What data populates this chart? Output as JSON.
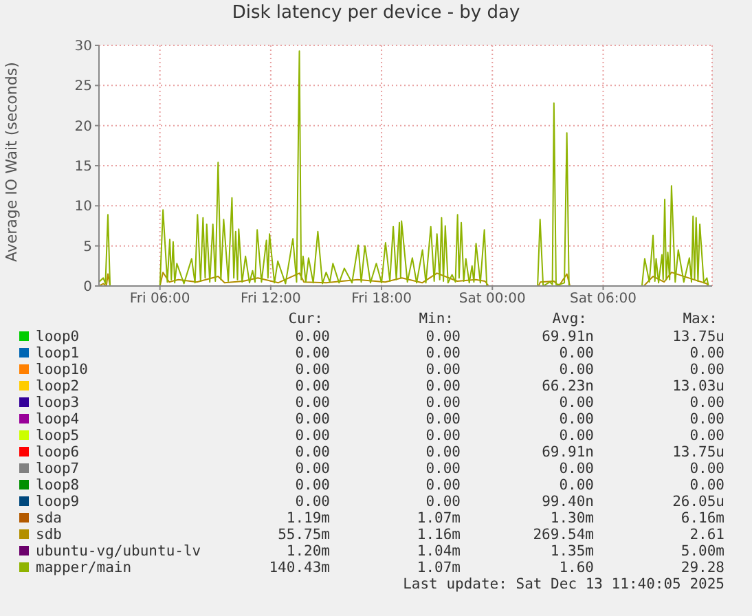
{
  "chart_data": {
    "type": "line",
    "title": "Disk latency per device - by day",
    "ylabel": "Average IO Wait (seconds)",
    "xlim": [
      "2025-12-12T02:42",
      "2025-12-13T11:54"
    ],
    "xticks": [
      {
        "value": "2025-12-12T06:00",
        "label": "Fri 06:00"
      },
      {
        "value": "2025-12-12T12:00",
        "label": "Fri 12:00"
      },
      {
        "value": "2025-12-12T18:00",
        "label": "Fri 18:00"
      },
      {
        "value": "2025-12-13T00:00",
        "label": "Sat 00:00"
      },
      {
        "value": "2025-12-13T06:00",
        "label": "Sat 06:00"
      }
    ],
    "ylim": [
      0,
      30
    ],
    "yticks": [
      0,
      5,
      10,
      15,
      20,
      25,
      30
    ],
    "grid": true,
    "legend": "bottom",
    "marker": "none",
    "line_style": "solid",
    "series": [
      {
        "name": "loop0",
        "color": "#00cc00"
      },
      {
        "name": "loop1",
        "color": "#0066b3"
      },
      {
        "name": "loop10",
        "color": "#ff8000"
      },
      {
        "name": "loop2",
        "color": "#ffcc00"
      },
      {
        "name": "loop3",
        "color": "#330099"
      },
      {
        "name": "loop4",
        "color": "#990099"
      },
      {
        "name": "loop5",
        "color": "#ccff00"
      },
      {
        "name": "loop6",
        "color": "#ff0000"
      },
      {
        "name": "loop7",
        "color": "#808080"
      },
      {
        "name": "loop8",
        "color": "#008f00"
      },
      {
        "name": "loop9",
        "color": "#00487d"
      },
      {
        "name": "sda",
        "color": "#b35a00"
      },
      {
        "name": "sdb",
        "color": "#b38f00",
        "x": [
          "2025-12-12T02:42",
          "2025-12-12T02:56",
          "2025-12-12T03:06",
          "2025-12-12T03:11",
          "2025-12-12T03:18",
          "2025-12-12T06:00",
          "2025-12-12T06:10",
          "2025-12-12T06:30",
          "2025-12-12T07:00",
          "2025-12-12T08:00",
          "2025-12-12T09:09",
          "2025-12-12T09:30",
          "2025-12-12T10:30",
          "2025-12-12T11:18",
          "2025-12-12T12:24",
          "2025-12-12T13:33",
          "2025-12-12T13:48",
          "2025-12-12T15:00",
          "2025-12-12T16:42",
          "2025-12-12T18:12",
          "2025-12-12T19:06",
          "2025-12-12T20:12",
          "2025-12-12T21:00",
          "2025-12-12T22:06",
          "2025-12-12T23:06",
          "2025-12-12T23:36",
          "2025-12-12T23:48",
          "2025-12-13T02:30",
          "2025-12-13T02:36",
          "2025-12-13T03:20",
          "2025-12-13T03:36",
          "2025-12-13T04:02",
          "2025-12-13T04:12",
          "2025-12-13T08:12",
          "2025-12-13T08:42",
          "2025-12-13T09:18",
          "2025-12-13T09:42",
          "2025-12-13T10:54",
          "2025-12-13T11:36",
          "2025-12-13T11:42"
        ],
        "values": [
          0,
          0.3,
          0,
          1.5,
          0,
          0,
          1.7,
          0.5,
          0.8,
          0.5,
          1.2,
          0.4,
          0.6,
          1.0,
          0.4,
          1.6,
          0.5,
          0.4,
          0.8,
          0.5,
          1.0,
          0.4,
          1.6,
          0.6,
          0.8,
          0.6,
          0,
          0,
          0.5,
          0.6,
          0,
          1.5,
          0,
          0,
          1.2,
          0.5,
          1.7,
          0.8,
          0.3,
          0
        ]
      },
      {
        "name": "ubuntu-vg/ubuntu-lv",
        "color": "#6b006b"
      },
      {
        "name": "mapper/main",
        "color": "#8fb300",
        "x": [
          "2025-12-12T02:42",
          "2025-12-12T02:56",
          "2025-12-12T03:03",
          "2025-12-12T03:11",
          "2025-12-12T03:18",
          "2025-12-12T06:00",
          "2025-12-12T06:10",
          "2025-12-12T06:24",
          "2025-12-12T06:32",
          "2025-12-12T06:37",
          "2025-12-12T06:43",
          "2025-12-12T06:48",
          "2025-12-12T06:55",
          "2025-12-12T07:18",
          "2025-12-12T07:43",
          "2025-12-12T07:54",
          "2025-12-12T08:02",
          "2025-12-12T08:12",
          "2025-12-12T08:20",
          "2025-12-12T08:27",
          "2025-12-12T08:32",
          "2025-12-12T08:42",
          "2025-12-12T08:52",
          "2025-12-12T09:00",
          "2025-12-12T09:09",
          "2025-12-12T09:18",
          "2025-12-12T09:27",
          "2025-12-12T09:42",
          "2025-12-12T09:54",
          "2025-12-12T10:00",
          "2025-12-12T10:06",
          "2025-12-12T10:12",
          "2025-12-12T10:16",
          "2025-12-12T10:27",
          "2025-12-12T10:38",
          "2025-12-12T10:51",
          "2025-12-12T11:01",
          "2025-12-12T11:09",
          "2025-12-12T11:16",
          "2025-12-12T11:30",
          "2025-12-12T11:46",
          "2025-12-12T11:51",
          "2025-12-12T11:56",
          "2025-12-12T12:12",
          "2025-12-12T12:23",
          "2025-12-12T12:48",
          "2025-12-12T13:12",
          "2025-12-12T13:24",
          "2025-12-12T13:33",
          "2025-12-12T13:39",
          "2025-12-12T13:45",
          "2025-12-12T13:54",
          "2025-12-12T14:03",
          "2025-12-12T14:18",
          "2025-12-12T14:33",
          "2025-12-12T14:48",
          "2025-12-12T15:00",
          "2025-12-12T15:12",
          "2025-12-12T15:22",
          "2025-12-12T15:42",
          "2025-12-12T15:59",
          "2025-12-12T16:24",
          "2025-12-12T16:44",
          "2025-12-12T16:54",
          "2025-12-12T17:06",
          "2025-12-12T17:24",
          "2025-12-12T17:43",
          "2025-12-12T18:00",
          "2025-12-12T18:13",
          "2025-12-12T18:27",
          "2025-12-12T18:38",
          "2025-12-12T18:48",
          "2025-12-12T18:58",
          "2025-12-12T19:02",
          "2025-12-12T19:05",
          "2025-12-12T19:24",
          "2025-12-12T19:40",
          "2025-12-12T19:54",
          "2025-12-12T20:13",
          "2025-12-12T20:24",
          "2025-12-12T20:40",
          "2025-12-12T20:51",
          "2025-12-12T21:00",
          "2025-12-12T21:09",
          "2025-12-12T21:15",
          "2025-12-12T21:21",
          "2025-12-12T21:27",
          "2025-12-12T21:36",
          "2025-12-12T21:49",
          "2025-12-12T22:00",
          "2025-12-12T22:07",
          "2025-12-12T22:12",
          "2025-12-12T22:19",
          "2025-12-12T22:27",
          "2025-12-12T22:34",
          "2025-12-12T22:45",
          "2025-12-12T22:54",
          "2025-12-12T23:00",
          "2025-12-12T23:07",
          "2025-12-12T23:21",
          "2025-12-12T23:34",
          "2025-12-12T23:42",
          "2025-12-13T02:27",
          "2025-12-13T02:35",
          "2025-12-13T02:45",
          "2025-12-13T03:07",
          "2025-12-13T03:15",
          "2025-12-13T03:20",
          "2025-12-13T03:27",
          "2025-12-13T03:40",
          "2025-12-13T03:54",
          "2025-12-13T04:02",
          "2025-12-13T04:09",
          "2025-12-13T08:06",
          "2025-12-13T08:15",
          "2025-12-13T08:30",
          "2025-12-13T08:42",
          "2025-12-13T08:48",
          "2025-12-13T08:52",
          "2025-12-13T09:00",
          "2025-12-13T09:11",
          "2025-12-13T09:15",
          "2025-12-13T09:20",
          "2025-12-13T09:25",
          "2025-12-13T09:30",
          "2025-12-13T09:36",
          "2025-12-13T09:42",
          "2025-12-13T09:54",
          "2025-12-13T10:04",
          "2025-12-13T10:22",
          "2025-12-13T10:40",
          "2025-12-13T10:47",
          "2025-12-13T10:52",
          "2025-12-13T10:57",
          "2025-12-13T11:02",
          "2025-12-13T11:08",
          "2025-12-13T11:14",
          "2025-12-13T11:27",
          "2025-12-13T11:37",
          "2025-12-13T11:42"
        ],
        "values": [
          0.5,
          1,
          0.3,
          8.9,
          0,
          0,
          9.5,
          0.5,
          5.8,
          0.8,
          5.5,
          0.4,
          2.8,
          0.3,
          3.4,
          0.4,
          8.9,
          0.6,
          8.5,
          1.0,
          7.7,
          0.5,
          7.7,
          0.6,
          15.4,
          0.8,
          8.3,
          0.6,
          11,
          1.0,
          6.8,
          0.8,
          7.1,
          0.5,
          3.7,
          0.4,
          1.9,
          0.5,
          7.0,
          0.5,
          5.7,
          1.0,
          6.5,
          0.4,
          3.1,
          0.3,
          5.9,
          0.5,
          29.3,
          0.8,
          3.7,
          0.5,
          3.5,
          0.4,
          6.8,
          0.3,
          1.7,
          0.5,
          2.8,
          0.4,
          2.2,
          0.4,
          5.1,
          0.5,
          5.0,
          0.4,
          2.8,
          0.4,
          5.4,
          0.6,
          7.4,
          0.8,
          7.9,
          1.0,
          8.1,
          0.5,
          3.5,
          0.4,
          4.5,
          0.4,
          7.4,
          0.6,
          6.5,
          0.8,
          8.5,
          0.6,
          7.5,
          0.4,
          1.4,
          0.5,
          8.9,
          1.0,
          7.9,
          0.6,
          3.4,
          0.4,
          2.5,
          0.5,
          5.3,
          0.4,
          7.0,
          0,
          0,
          8.3,
          0,
          0.5,
          0.2,
          22.8,
          0.2,
          0.2,
          0.4,
          19.1,
          0,
          0,
          3.4,
          0.5,
          6.3,
          0.6,
          3.4,
          0.4,
          3.9,
          0.8,
          10.8,
          0.8,
          4.2,
          0.8,
          12.5,
          0.5,
          4.5,
          0.5,
          3.5,
          0.5,
          8.7,
          0.8,
          8.5,
          0.6,
          7.7,
          0.4,
          1.0,
          0
        ]
      }
    ],
    "annotations": [
      "Cur:",
      "Min:",
      "Avg:",
      "Max:",
      "0.00",
      "0.00",
      "69.91n",
      "13.75u",
      "0.00",
      "0.00",
      "0.00",
      "0.00",
      "0.00",
      "0.00",
      "0.00",
      "0.00",
      "0.00",
      "0.00",
      "66.23n",
      "13.03u",
      "0.00",
      "0.00",
      "0.00",
      "0.00",
      "0.00",
      "0.00",
      "0.00",
      "0.00",
      "0.00",
      "0.00",
      "0.00",
      "0.00",
      "0.00",
      "0.00",
      "69.91n",
      "13.75u",
      "0.00",
      "0.00",
      "0.00",
      "0.00",
      "0.00",
      "0.00",
      "0.00",
      "0.00",
      "0.00",
      "0.00",
      "99.40n",
      "26.05u",
      "1.19m",
      "1.07m",
      "1.30m",
      "6.16m",
      "55.75m",
      "1.16m",
      "269.54m",
      "2.61",
      "1.20m",
      "1.04m",
      "1.35m",
      "5.00m",
      "140.43m",
      "1.07m",
      "1.60",
      "29.28",
      "Last update: Sat Dec 13 11:40:05 2025"
    ]
  }
}
